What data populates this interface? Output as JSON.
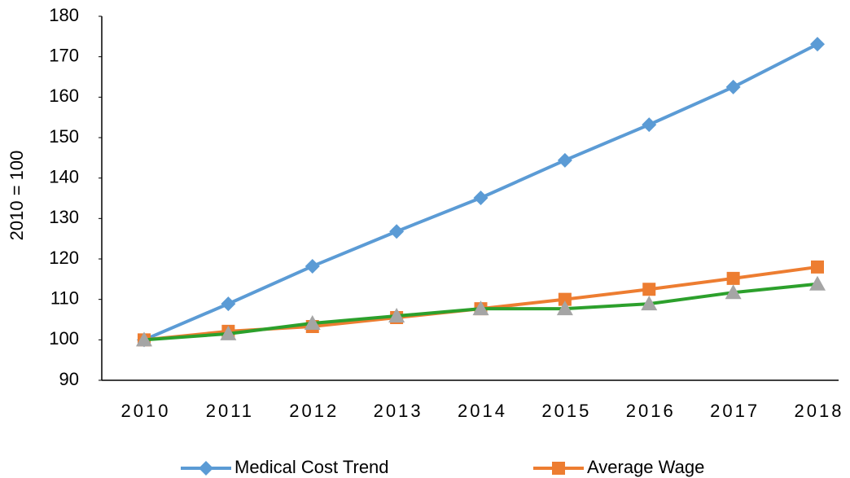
{
  "chart_data": {
    "type": "line",
    "y_label": "2010 = 100",
    "categories": [
      "2010",
      "2011",
      "2012",
      "2013",
      "2014",
      "2015",
      "2016",
      "2017",
      "2018"
    ],
    "series": [
      {
        "name": "Medical Cost Trend",
        "color": "#5b9bd5",
        "marker": "diamond",
        "values": [
          100,
          108.9,
          118.2,
          126.8,
          135.1,
          144.4,
          153.2,
          162.5,
          173.1
        ]
      },
      {
        "name": "Average Wage",
        "color": "#ed7d31",
        "marker": "square",
        "values": [
          100,
          102.1,
          103.3,
          105.5,
          107.7,
          110,
          112.5,
          115.2,
          118
        ]
      },
      {
        "color": "#2ca02c",
        "marker_color": "#a5a5a5",
        "marker": "triangle",
        "values": [
          100,
          101.5,
          104.1,
          105.9,
          107.7,
          107.7,
          108.9,
          111.7,
          113.8
        ]
      }
    ],
    "ylim": [
      90,
      180
    ],
    "yticks": [
      90,
      100,
      110,
      120,
      130,
      140,
      150,
      160,
      170,
      180
    ],
    "grid": false,
    "legend": "bottom"
  }
}
